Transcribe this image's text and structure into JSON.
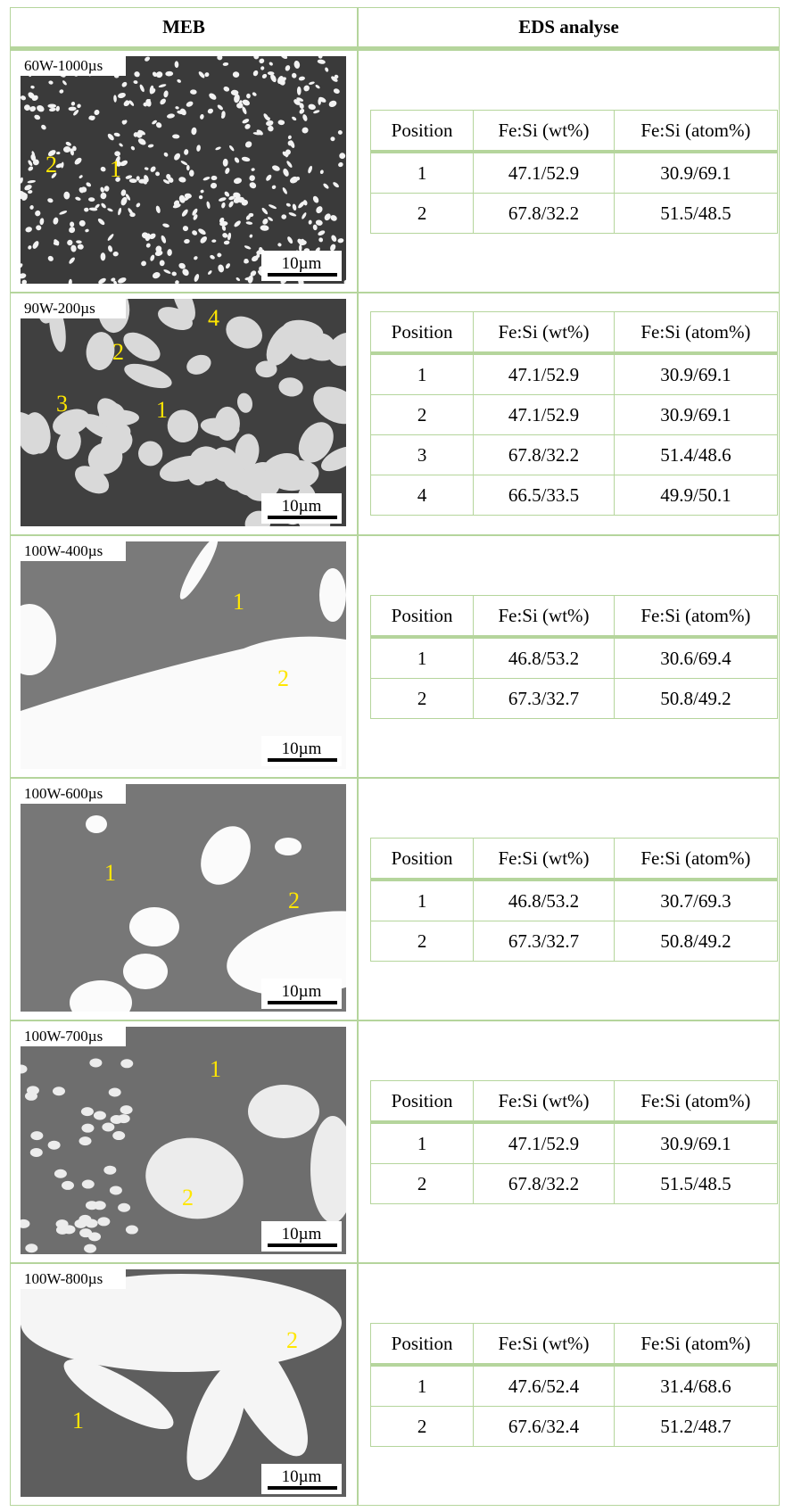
{
  "header": [
    "MEB",
    "EDS analyse"
  ],
  "rows": [
    {
      "image": {
        "label": "60W-1000µs",
        "markers": [
          "2",
          "1"
        ],
        "scale": "10µm"
      },
      "table": {
        "columns": [
          "Position",
          "Fe:Si (wt%)",
          "Fe:Si (atom%)"
        ],
        "rows": [
          [
            "1",
            "47.1/52.9",
            "30.9/69.1"
          ],
          [
            "2",
            "67.8/32.2",
            "51.5/48.5"
          ]
        ]
      }
    },
    {
      "image": {
        "label": "90W-200µs",
        "markers": [
          "4",
          "2",
          "3",
          "1"
        ],
        "scale": "10µm"
      },
      "table": {
        "columns": [
          "Position",
          "Fe:Si (wt%)",
          "Fe:Si (atom%)"
        ],
        "rows": [
          [
            "1",
            "47.1/52.9",
            "30.9/69.1"
          ],
          [
            "2",
            "47.1/52.9",
            "30.9/69.1"
          ],
          [
            "3",
            "67.8/32.2",
            "51.4/48.6"
          ],
          [
            "4",
            "66.5/33.5",
            "49.9/50.1"
          ]
        ]
      }
    },
    {
      "image": {
        "label": "100W-400µs",
        "markers": [
          "1",
          "2"
        ],
        "scale": "10µm"
      },
      "table": {
        "columns": [
          "Position",
          "Fe:Si (wt%)",
          "Fe:Si (atom%)"
        ],
        "rows": [
          [
            "1",
            "46.8/53.2",
            "30.6/69.4"
          ],
          [
            "2",
            "67.3/32.7",
            "50.8/49.2"
          ]
        ]
      }
    },
    {
      "image": {
        "label": "100W-600µs",
        "markers": [
          "1",
          "2"
        ],
        "scale": "10µm"
      },
      "table": {
        "columns": [
          "Position",
          "Fe:Si (wt%)",
          "Fe:Si (atom%)"
        ],
        "rows": [
          [
            "1",
            "46.8/53.2",
            "30.7/69.3"
          ],
          [
            "2",
            "67.3/32.7",
            "50.8/49.2"
          ]
        ]
      }
    },
    {
      "image": {
        "label": "100W-700µs",
        "markers": [
          "1",
          "2"
        ],
        "scale": "10µm"
      },
      "table": {
        "columns": [
          "Position",
          "Fe:Si (wt%)",
          "Fe:Si (atom%)"
        ],
        "rows": [
          [
            "1",
            "47.1/52.9",
            "30.9/69.1"
          ],
          [
            "2",
            "67.8/32.2",
            "51.5/48.5"
          ]
        ]
      }
    },
    {
      "image": {
        "label": "100W-800µs",
        "markers": [
          "2",
          "1"
        ],
        "scale": "10µm"
      },
      "table": {
        "columns": [
          "Position",
          "Fe:Si (wt%)",
          "Fe:Si (atom%)"
        ],
        "rows": [
          [
            "1",
            "47.6/52.4",
            "31.4/68.6"
          ],
          [
            "2",
            "67.6/32.4",
            "51.2/48.7"
          ]
        ]
      }
    }
  ]
}
